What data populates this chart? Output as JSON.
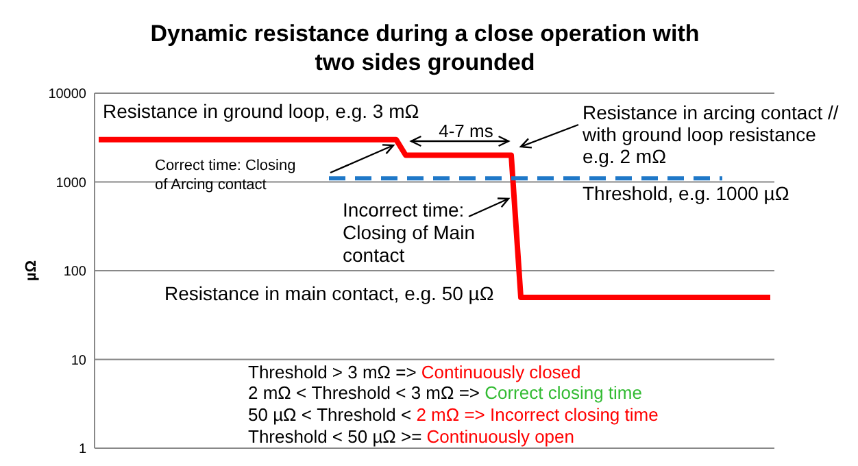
{
  "chart_data": {
    "type": "line",
    "title": "Dynamic resistance during a close operation with\ntwo sides grounded",
    "ylabel": "µΩ",
    "categories": [
      null,
      null,
      null,
      null,
      null,
      null,
      null,
      null,
      null,
      null,
      null,
      null,
      null,
      null,
      null,
      null,
      null,
      null,
      null,
      null,
      null,
      null,
      null,
      null,
      null,
      null,
      null,
      null,
      null,
      null,
      null,
      null,
      null,
      null,
      null,
      null,
      null,
      null,
      null,
      null,
      null,
      null,
      null,
      null,
      null,
      null,
      null,
      null,
      null,
      null,
      null,
      null,
      null,
      null,
      null,
      null,
      null,
      null,
      null,
      null,
      null,
      null,
      null,
      null,
      null,
      null,
      null,
      null,
      null,
      null,
      null
    ],
    "series": [
      {
        "color": "#ff0000",
        "line_style": "solid",
        "values": [
          3000,
          null,
          null,
          null,
          null,
          null,
          null,
          null,
          null,
          null,
          null,
          null,
          null,
          null,
          null,
          null,
          null,
          null,
          null,
          null,
          null,
          null,
          null,
          null,
          null,
          null,
          null,
          null,
          null,
          null,
          null,
          3000,
          2000,
          null,
          null,
          null,
          null,
          null,
          null,
          null,
          null,
          null,
          null,
          2000,
          50,
          null,
          null,
          null,
          null,
          null,
          null,
          null,
          null,
          null,
          null,
          null,
          null,
          null,
          null,
          null,
          null,
          null,
          null,
          null,
          null,
          null,
          null,
          null,
          null,
          null,
          50
        ]
      },
      {
        "color": "#1f78c8",
        "line_style": "dashed",
        "values": [
          null,
          null,
          null,
          null,
          null,
          null,
          null,
          null,
          null,
          null,
          null,
          null,
          null,
          null,
          null,
          null,
          null,
          null,
          null,
          null,
          null,
          null,
          null,
          null,
          1100,
          null,
          null,
          null,
          null,
          null,
          null,
          null,
          null,
          null,
          null,
          null,
          null,
          null,
          null,
          null,
          null,
          null,
          null,
          null,
          null,
          null,
          null,
          null,
          null,
          null,
          null,
          null,
          null,
          null,
          null,
          null,
          null,
          null,
          null,
          null,
          null,
          null,
          null,
          null,
          null,
          1100,
          null,
          null,
          null,
          null,
          null
        ]
      }
    ],
    "log": "y",
    "ylim": [
      1,
      10000
    ],
    "yticks": [
      1,
      10,
      100,
      1000,
      10000
    ],
    "grid": "y",
    "tick_labels": "y",
    "marker": "none",
    "annotations": [
      "Resistance in ground loop, e.g. 3 mΩ",
      "4-7 ms",
      "Resistance in arcing contact //\nwith ground loop resistance\ne.g. 2 mΩ",
      "Correct time: Closing\nof Arcing contact",
      "Threshold, e.g. 1000 µΩ",
      "Incorrect time:\nClosing of Main\ncontact",
      "Resistance in main contact, e.g. 50 µΩ",
      "Threshold > 3 mΩ => ",
      "Continuously closed",
      "2 mΩ < Threshold < 3 mΩ => ",
      "Correct closing time",
      "50 µΩ < Threshold < ",
      "2 mΩ => Incorrect closing time",
      "Threshold < 50 µΩ >= ",
      "Continuously open"
    ]
  }
}
